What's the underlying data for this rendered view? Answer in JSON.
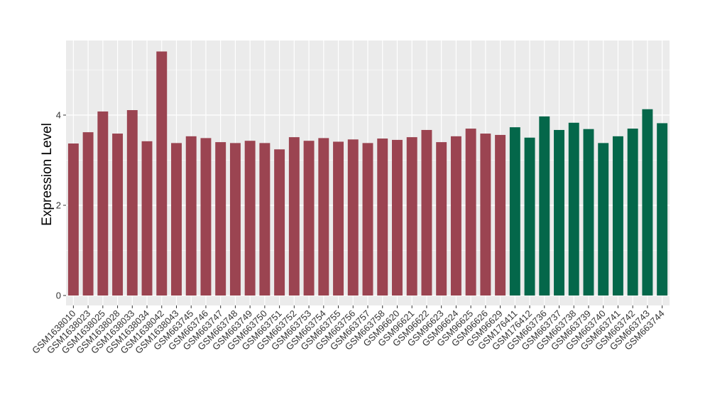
{
  "chart_data": {
    "type": "bar",
    "title": "",
    "xlabel": "",
    "ylabel": "Expression Level",
    "ylim": [
      0,
      5.5
    ],
    "yticks": [
      0,
      2,
      4
    ],
    "grid": true,
    "legend": "none",
    "colors": {
      "group1": "#9B4451",
      "group2": "#04674A",
      "panel": "#EBEBEB",
      "grid": "#FFFFFF"
    },
    "categories": [
      "GSM1638010",
      "GSM1638023",
      "GSM1638025",
      "GSM1638028",
      "GSM1638033",
      "GSM1638034",
      "GSM1638042",
      "GSM1638043",
      "GSM663745",
      "GSM663746",
      "GSM663747",
      "GSM663748",
      "GSM663749",
      "GSM663750",
      "GSM663751",
      "GSM663752",
      "GSM663753",
      "GSM663754",
      "GSM663755",
      "GSM663756",
      "GSM663757",
      "GSM663758",
      "GSM96620",
      "GSM96621",
      "GSM96622",
      "GSM96623",
      "GSM96624",
      "GSM96625",
      "GSM96626",
      "GSM96629",
      "GSM176411",
      "GSM176412",
      "GSM663736",
      "GSM663737",
      "GSM663738",
      "GSM663739",
      "GSM663740",
      "GSM663741",
      "GSM663742",
      "GSM663743",
      "GSM663744"
    ],
    "values": [
      3.37,
      3.62,
      4.08,
      3.59,
      4.11,
      3.42,
      5.41,
      3.38,
      3.53,
      3.49,
      3.4,
      3.38,
      3.43,
      3.38,
      3.24,
      3.51,
      3.43,
      3.49,
      3.41,
      3.46,
      3.38,
      3.48,
      3.45,
      3.51,
      3.67,
      3.4,
      3.53,
      3.7,
      3.59,
      3.56,
      3.73,
      3.5,
      3.97,
      3.67,
      3.83,
      3.69,
      3.38,
      3.53,
      3.7,
      4.13,
      3.82
    ],
    "groups": [
      1,
      1,
      1,
      1,
      1,
      1,
      1,
      1,
      1,
      1,
      1,
      1,
      1,
      1,
      1,
      1,
      1,
      1,
      1,
      1,
      1,
      1,
      1,
      1,
      1,
      1,
      1,
      1,
      1,
      1,
      2,
      2,
      2,
      2,
      2,
      2,
      2,
      2,
      2,
      2,
      2
    ]
  }
}
